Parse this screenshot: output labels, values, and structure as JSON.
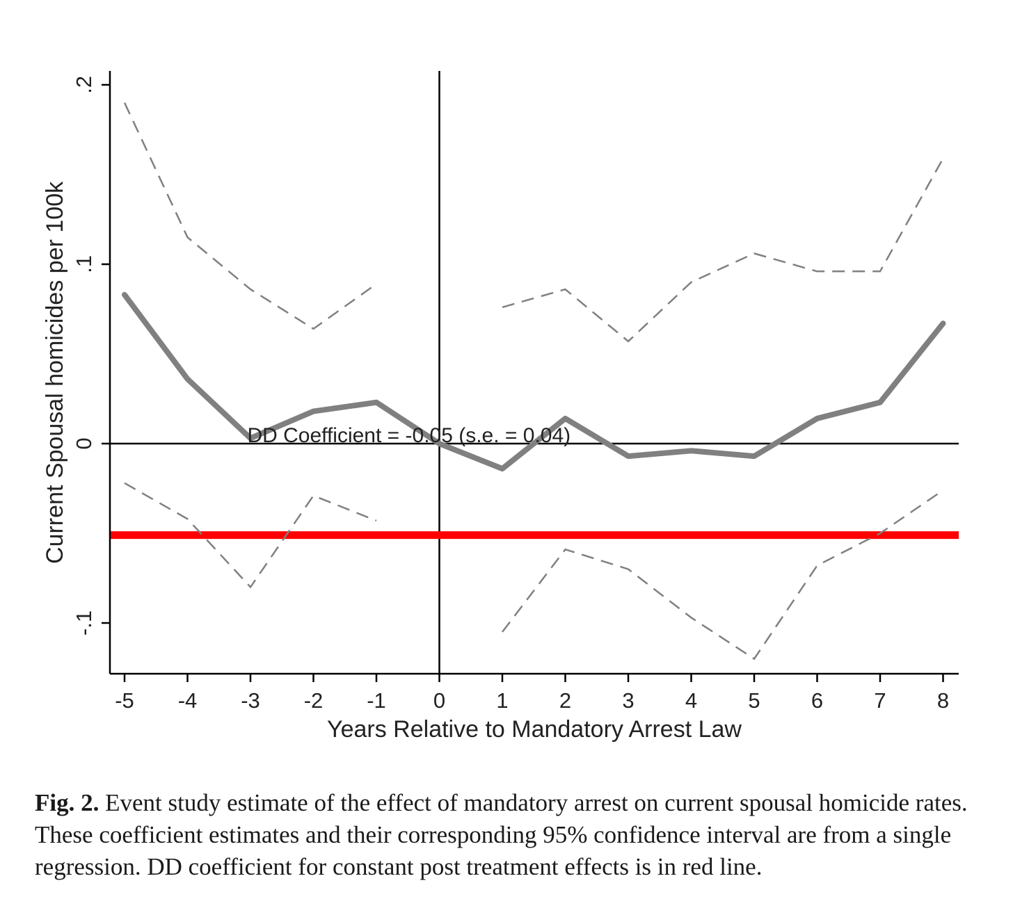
{
  "chart_data": {
    "type": "line",
    "xlabel": "Years Relative to Mandatory Arrest Law",
    "ylabel": "Current Spousal homicides per 100k",
    "x": [
      -5,
      -4,
      -3,
      -2,
      -1,
      0,
      1,
      2,
      3,
      4,
      5,
      6,
      7,
      8
    ],
    "x_tick_labels": [
      "-5",
      "-4",
      "-3",
      "-2",
      "-1",
      "0",
      "1",
      "2",
      "3",
      "4",
      "5",
      "6",
      "7",
      "8"
    ],
    "y_ticks": [
      -0.1,
      0,
      0.1,
      0.2
    ],
    "y_tick_labels": [
      "-.1",
      "0",
      ".1",
      ".2"
    ],
    "xlim": [
      -5.2,
      8.25
    ],
    "ylim": [
      -0.128,
      0.207
    ],
    "grid": false,
    "series": [
      {
        "role": "estimate",
        "x": [
          -5,
          -4,
          -3,
          -2,
          -1,
          0,
          1,
          2,
          3,
          4,
          5,
          6,
          7,
          8
        ],
        "values": [
          0.083,
          0.036,
          0.003,
          0.018,
          0.023,
          0.0,
          -0.014,
          0.014,
          -0.007,
          -0.004,
          -0.007,
          0.014,
          0.023,
          0.067
        ],
        "color": "#808080",
        "style": "solid"
      },
      {
        "role": "ci-upper-pre",
        "x": [
          -5,
          -4,
          -3,
          -2,
          -1
        ],
        "values": [
          0.19,
          0.115,
          0.086,
          0.064,
          0.089
        ],
        "color": "#808080",
        "style": "dashed"
      },
      {
        "role": "ci-lower-pre",
        "x": [
          -5,
          -4,
          -3,
          -2,
          -1
        ],
        "values": [
          -0.022,
          -0.042,
          -0.08,
          -0.029,
          -0.043
        ],
        "color": "#808080",
        "style": "dashed"
      },
      {
        "role": "ci-upper-post",
        "x": [
          1,
          2,
          3,
          4,
          5,
          6,
          7,
          8
        ],
        "values": [
          0.076,
          0.086,
          0.057,
          0.09,
          0.106,
          0.096,
          0.096,
          0.159
        ],
        "color": "#808080",
        "style": "dashed"
      },
      {
        "role": "ci-lower-post",
        "x": [
          1,
          2,
          3,
          4,
          5,
          6,
          7,
          8
        ],
        "values": [
          -0.105,
          -0.059,
          -0.07,
          -0.097,
          -0.12,
          -0.068,
          -0.05,
          -0.026
        ],
        "color": "#808080",
        "style": "dashed"
      }
    ],
    "reference_lines": {
      "horizontal_zero": 0,
      "vertical_zero": 0,
      "dd_coefficient": -0.051,
      "dd_color": "#ff0000"
    },
    "annotation": {
      "text": "DD Coefficient = -0.05 (s.e. = 0.04)",
      "x": -3.05,
      "y": 0.0
    }
  },
  "caption": {
    "label": "Fig. 2.",
    "text": " Event study estimate of the effect of mandatory arrest on current spousal homicide rates. These coefficient estimates and their corresponding 95% confidence interval are from a single regression. DD coefficient for constant post treatment effects is in red line."
  }
}
